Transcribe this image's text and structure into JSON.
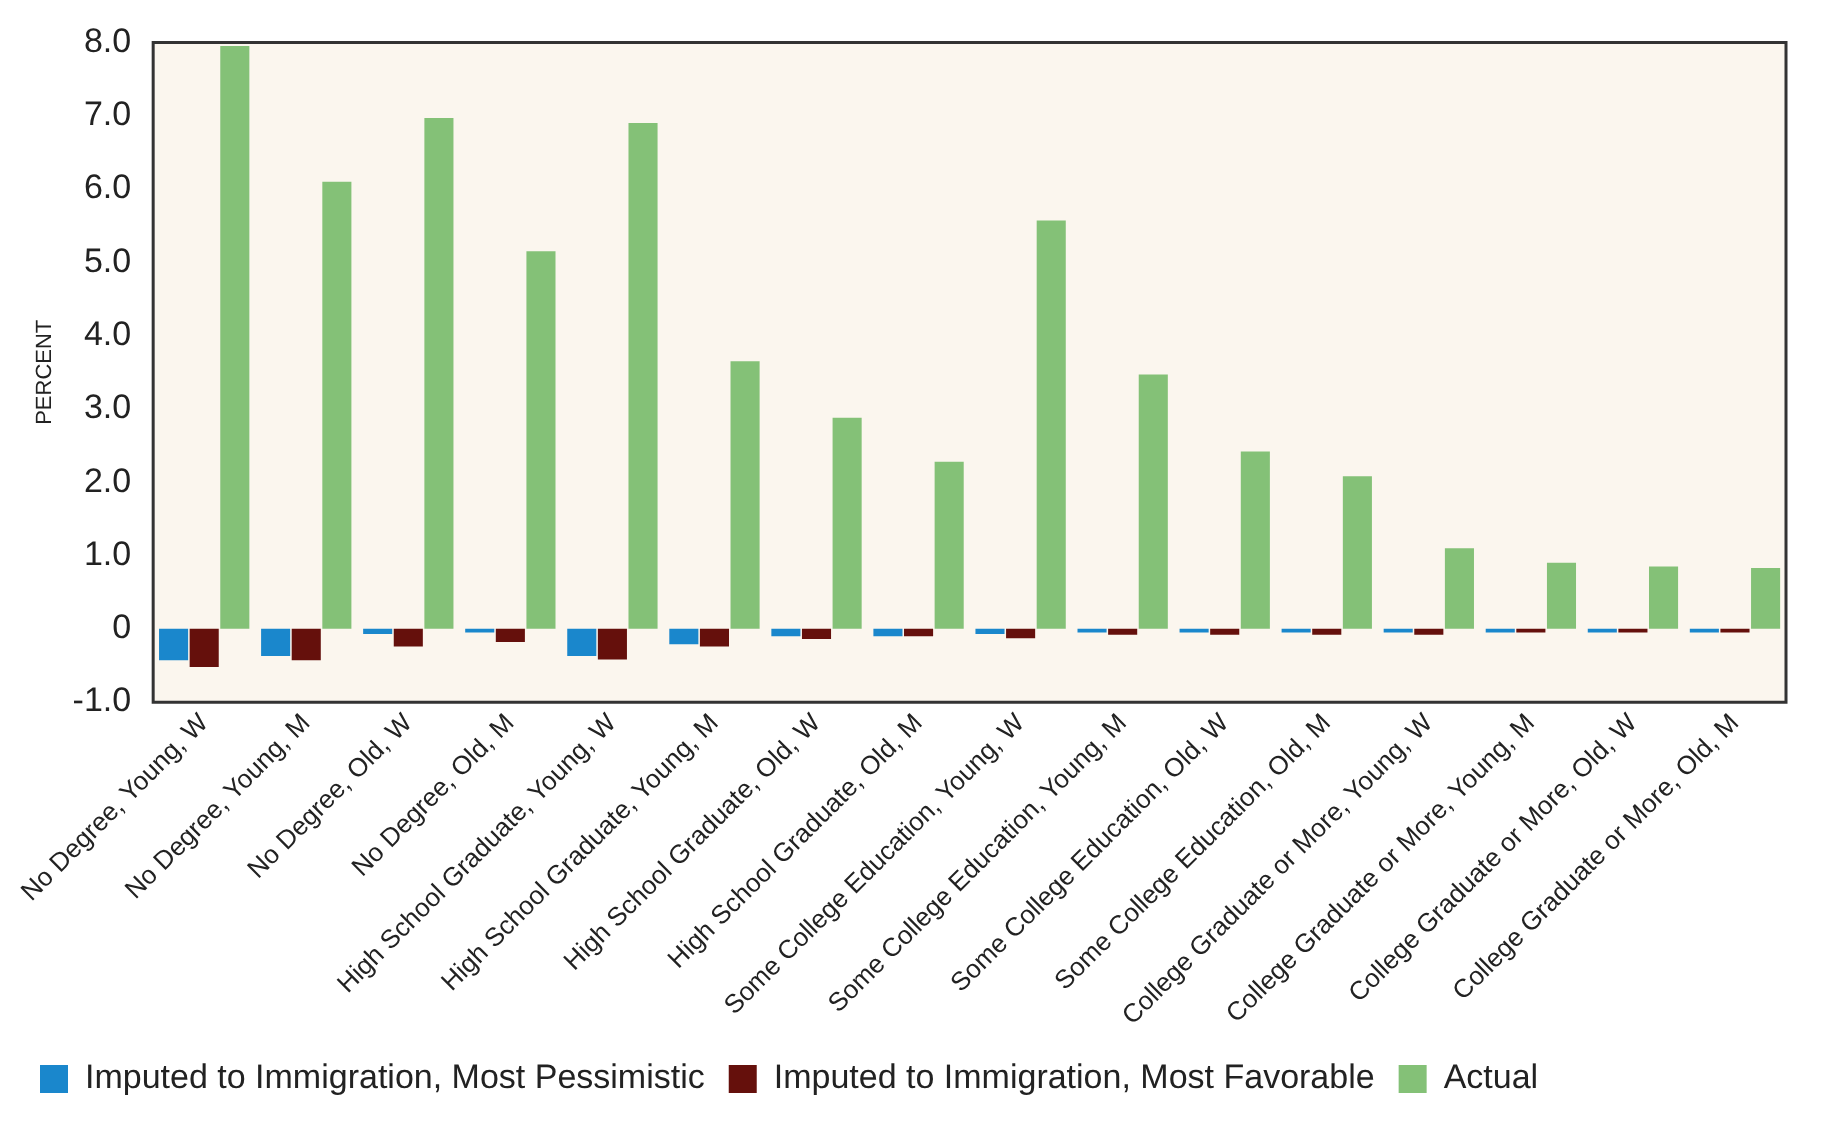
{
  "chart_data": {
    "type": "bar",
    "ylabel": "PERCENT",
    "categories": [
      "No Degree, Young, W",
      "No Degree, Young, M",
      "No Degree, Old, W",
      "No Degree, Old, M",
      "High School Graduate, Young, W",
      "High School Graduate, Young, M",
      "High School Graduate, Old, W",
      "High School Graduate, Old, M",
      "Some College Education, Young, W",
      "Some College Education, Young, M",
      "Some College Education, Old, W",
      "Some College Education, Old, M",
      "College Graduate or More, Young, W",
      "College Graduate or More, Young, M",
      "College Graduate or More, Old, W",
      "College Graduate or More, Old, M"
    ],
    "series": [
      {
        "name": "Imputed to Immigration, Most Pessimistic",
        "color": "#1a87cc",
        "values": [
          -0.43,
          -0.37,
          -0.07,
          -0.05,
          -0.37,
          -0.21,
          -0.1,
          -0.1,
          -0.07,
          -0.05,
          -0.05,
          -0.05,
          -0.05,
          -0.05,
          -0.05,
          -0.05
        ]
      },
      {
        "name": "Imputed to Immigration, Most Favorable",
        "color": "#65100c",
        "values": [
          -0.52,
          -0.43,
          -0.24,
          -0.18,
          -0.42,
          -0.24,
          -0.14,
          -0.1,
          -0.13,
          -0.08,
          -0.08,
          -0.08,
          -0.08,
          -0.05,
          -0.05,
          -0.05
        ]
      },
      {
        "name": "Actual",
        "color": "#84c177",
        "values": [
          7.95,
          6.1,
          6.97,
          5.15,
          6.9,
          3.65,
          2.88,
          2.28,
          5.57,
          3.47,
          2.42,
          2.08,
          1.1,
          0.9,
          0.85,
          0.83
        ]
      }
    ],
    "ylim": [
      -1,
      8
    ],
    "yticks": [
      {
        "value": 8,
        "label": "8.0"
      },
      {
        "value": 7,
        "label": "7.0"
      },
      {
        "value": 6,
        "label": "6.0"
      },
      {
        "value": 5,
        "label": "5.0"
      },
      {
        "value": 4,
        "label": "4.0"
      },
      {
        "value": 3,
        "label": "3.0"
      },
      {
        "value": 2,
        "label": "2.0"
      },
      {
        "value": 1,
        "label": "1.0"
      },
      0,
      {
        "value": -1,
        "label": "-1.0"
      }
    ],
    "grid": false,
    "legend": "bottom"
  }
}
